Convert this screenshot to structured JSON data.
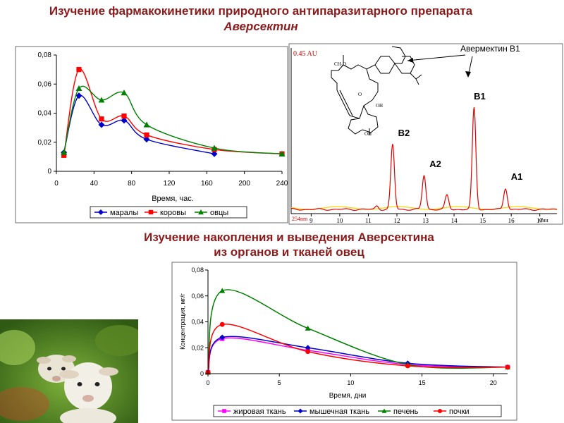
{
  "titles": {
    "top_line1": "Изучение фармакокинетики природного антипаразитарного препарата",
    "top_line2": "Аверсектин",
    "mid_line1": "Изучение накопления и выведения Аверсектина",
    "mid_line2": "из органов и тканей овец"
  },
  "colors": {
    "title": "#8b1a1a",
    "blue": "#0000cc",
    "red": "#ff0000",
    "green": "#008000",
    "magenta": "#ff00ff",
    "chromatogram": "#e00000",
    "baseline": "#ffd000"
  },
  "chart_data": [
    {
      "type": "line",
      "xlabel": "Время, час.",
      "ylabel": "",
      "xlim": [
        0,
        240
      ],
      "ylim": [
        0,
        0.08
      ],
      "xticks": [
        "0",
        "40",
        "80",
        "120",
        "160",
        "200",
        "240"
      ],
      "yticks": [
        "0",
        "0,02",
        "0,04",
        "0,06",
        "0,08"
      ],
      "legend_position": "bottom",
      "series": [
        {
          "name": "маралы",
          "color": "#0000cc",
          "marker": "diamond",
          "x": [
            8,
            24,
            48,
            72,
            96,
            168
          ],
          "y": [
            0.013,
            0.052,
            0.032,
            0.035,
            0.022,
            0.012
          ]
        },
        {
          "name": "коровы",
          "color": "#ff0000",
          "marker": "square",
          "x": [
            8,
            24,
            48,
            72,
            96,
            168,
            240
          ],
          "y": [
            0.011,
            0.07,
            0.036,
            0.038,
            0.025,
            0.015,
            0.012
          ]
        },
        {
          "name": "овцы",
          "color": "#008000",
          "marker": "triangle",
          "x": [
            8,
            24,
            48,
            72,
            96,
            168,
            240
          ],
          "y": [
            0.013,
            0.057,
            0.049,
            0.054,
            0.032,
            0.016,
            0.012
          ]
        }
      ]
    },
    {
      "type": "line",
      "subtype": "chromatogram",
      "xlabel": "мин",
      "ylabel": "0.45 AU",
      "detector_label": "254nm",
      "xlim": [
        8.3,
        17.6
      ],
      "xticks": [
        "9",
        "10",
        "11",
        "12",
        "13",
        "14",
        "15",
        "16",
        "17"
      ],
      "peaks": [
        {
          "label": "B2",
          "time": 11.85,
          "height": 0.46
        },
        {
          "label": "A2",
          "time": 12.95,
          "height": 0.24
        },
        {
          "label": "",
          "time": 13.75,
          "height": 0.1
        },
        {
          "label": "B1",
          "time": 14.7,
          "height": 0.72
        },
        {
          "label": "A1",
          "time": 15.8,
          "height": 0.15
        }
      ],
      "compound_label": "Авермектин B1",
      "structure_labels": {
        "methoxy": "CH₃O",
        "hydroxyl1": "OH",
        "hydroxyl2": "OH",
        "oxygen": "O"
      }
    },
    {
      "type": "line",
      "xlabel": "Время, дни",
      "ylabel": "Концентрация, мг/г",
      "xlim": [
        0,
        21
      ],
      "ylim": [
        0,
        0.08
      ],
      "xticks": [
        "0",
        "5",
        "10",
        "15",
        "20"
      ],
      "yticks": [
        "0",
        "0,02",
        "0,04",
        "0,06",
        "0,08"
      ],
      "legend_position": "bottom",
      "series": [
        {
          "name": "жировая ткань",
          "color": "#ff00ff",
          "marker": "square",
          "x": [
            0,
            1,
            7,
            14,
            21
          ],
          "y": [
            0.001,
            0.027,
            0.018,
            0.007,
            0.005
          ]
        },
        {
          "name": "мышечная ткань",
          "color": "#0000cc",
          "marker": "diamond",
          "x": [
            0,
            1,
            7,
            14,
            21
          ],
          "y": [
            0.001,
            0.028,
            0.02,
            0.008,
            0.005
          ]
        },
        {
          "name": "печень",
          "color": "#008000",
          "marker": "triangle",
          "x": [
            0,
            1,
            7,
            14,
            21
          ],
          "y": [
            0.001,
            0.064,
            0.035,
            0.007,
            0.005
          ]
        },
        {
          "name": "почки",
          "color": "#ff0000",
          "marker": "circle",
          "x": [
            0,
            1,
            7,
            14,
            21
          ],
          "y": [
            0.001,
            0.038,
            0.017,
            0.006,
            0.005
          ]
        }
      ]
    }
  ]
}
